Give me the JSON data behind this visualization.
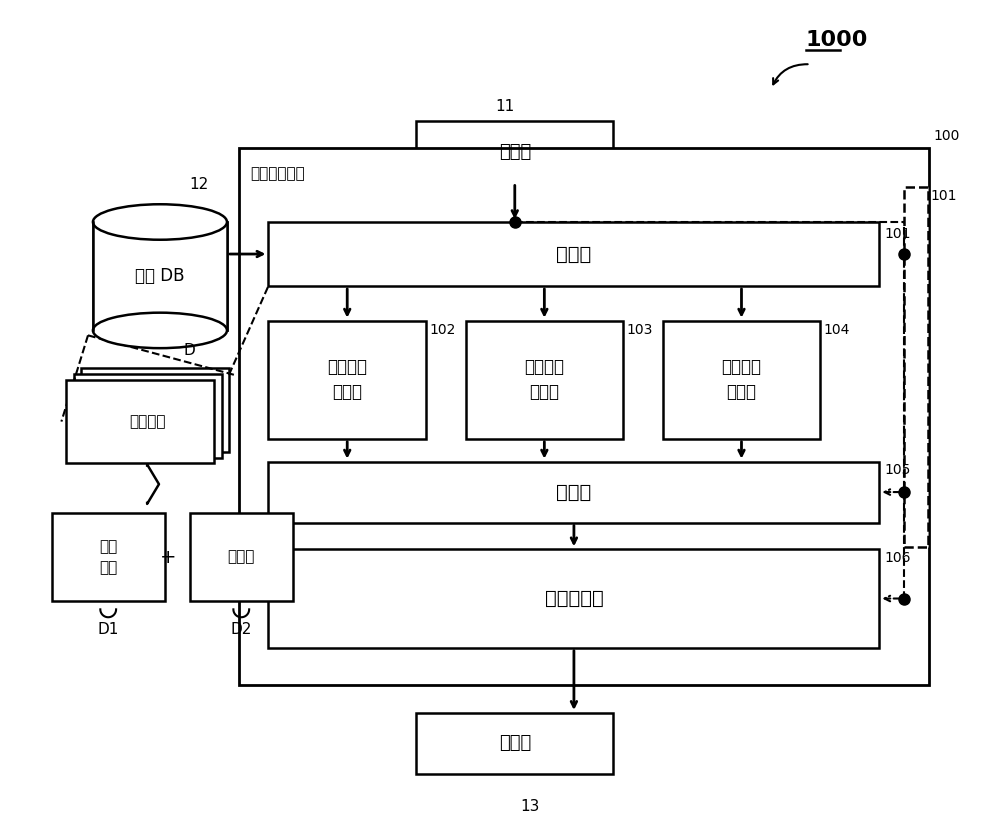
{
  "bg_color": "#ffffff",
  "fig_width": 10.0,
  "fig_height": 8.21,
  "label_1000": "1000",
  "label_11": "11",
  "label_12": "12",
  "label_13": "13",
  "label_100": "100",
  "label_101": "101",
  "label_102": "102",
  "label_103": "103",
  "label_104": "104",
  "label_105": "105",
  "label_106": "106",
  "text_input": "输入部",
  "text_retrieve": "提取部",
  "text_proc1": "第１信息\n处理部",
  "text_proc2": "第２信息\n处理部",
  "text_proc3": "第３信息\n处理部",
  "text_export": "导出部",
  "text_image": "图像处理部",
  "text_display": "显示部",
  "text_db": "文献 DB",
  "text_doc_info": "文献信息",
  "text_raw": "原文\n数据",
  "text_meta": "元数据",
  "text_info_device": "信息提供装置",
  "text_D": "D",
  "text_D1": "D1",
  "text_D2": "D2",
  "text_plus": "+"
}
